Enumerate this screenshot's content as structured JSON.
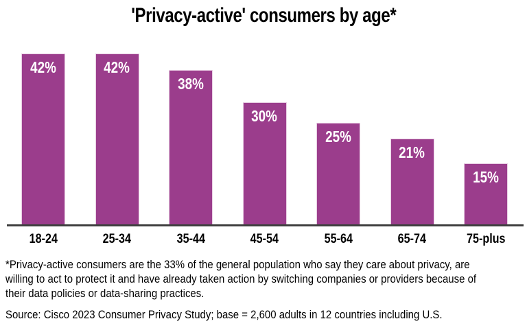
{
  "title": "'Privacy-active' consumers by age*",
  "chart_data": {
    "type": "bar",
    "title": "'Privacy-active' consumers by age*",
    "categories": [
      "18-24",
      "25-34",
      "35-44",
      "45-54",
      "55-64",
      "65-74",
      "75-plus"
    ],
    "values": [
      42,
      42,
      38,
      30,
      25,
      21,
      15
    ],
    "value_labels": [
      "42%",
      "42%",
      "38%",
      "30%",
      "25%",
      "21%",
      "15%"
    ],
    "xlabel": "",
    "ylabel": "",
    "ylim": [
      0,
      45
    ],
    "grid": false,
    "legend": false,
    "bar_color": "#9B3D8C",
    "bar_edge_color": "#E9CFE4",
    "value_label_color": "#FFFFFF",
    "axis_line_color": "#3F3F3F"
  },
  "footnote": {
    "lines": [
      "*Privacy-active consumers are the 33% of the general population who say they care about privacy, are",
      "willing to act to protect it and have already taken action by switching companies or providers because of",
      "their data policies or data-sharing practices."
    ]
  },
  "source": "Source: Cisco 2023 Consumer Privacy Study; base = 2,600 adults in 12 countries including U.S."
}
